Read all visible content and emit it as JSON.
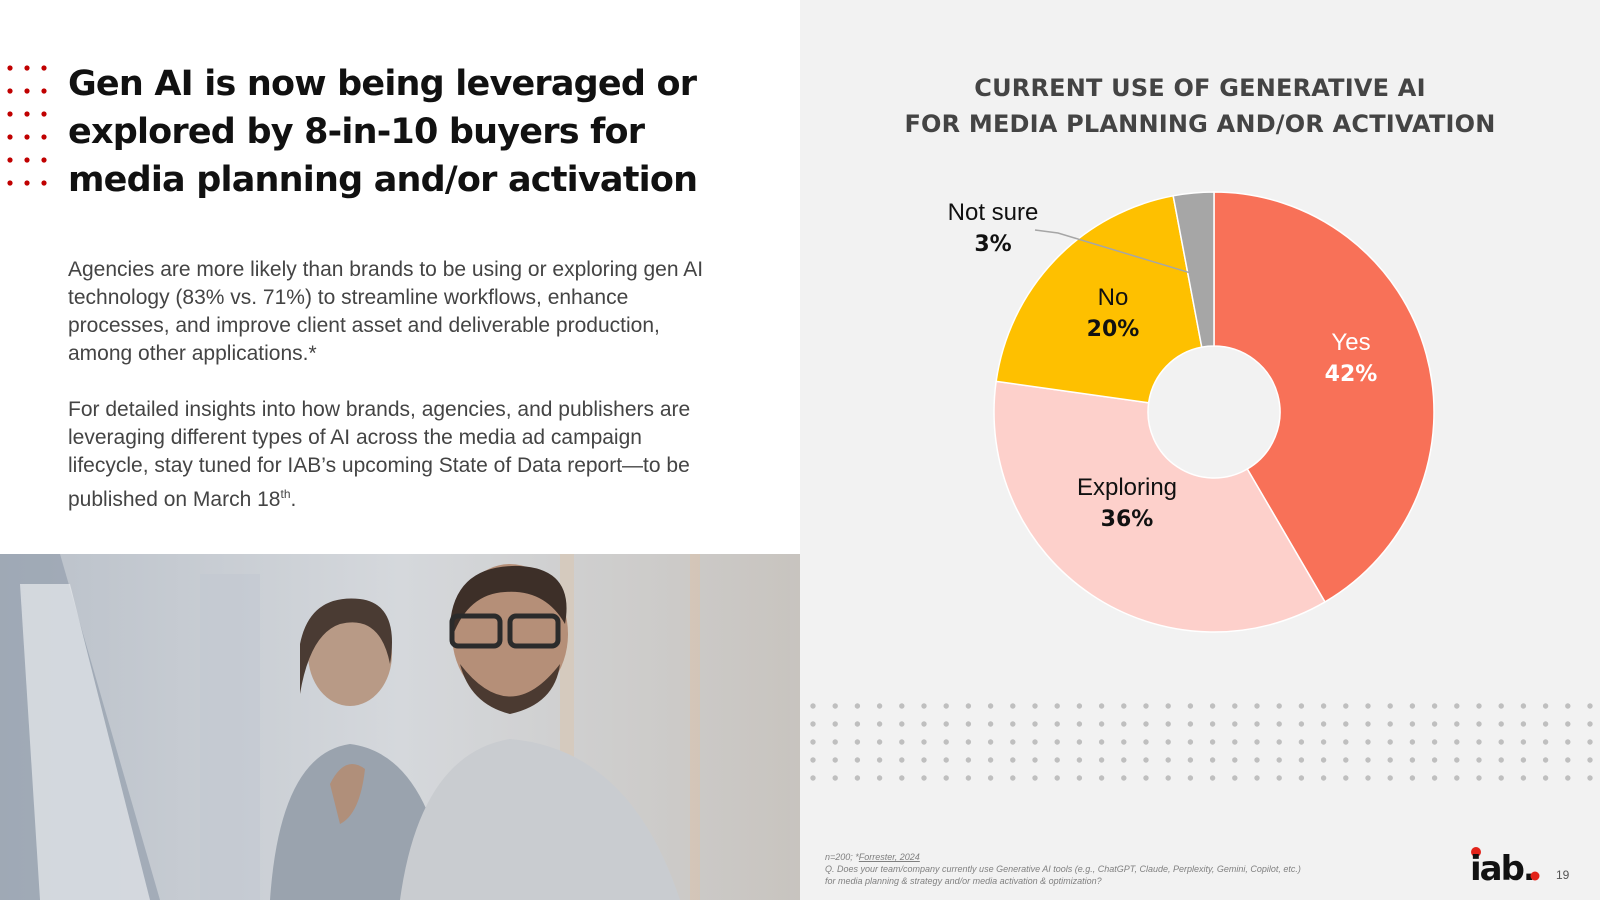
{
  "headline": "Gen AI is now being leveraged or explored by 8-in-10 buyers for media planning and/or activation",
  "body": {
    "p1": "Agencies are more likely than brands to be using or exploring gen AI technology (83% vs. 71%) to streamline workflows, enhance processes, and improve client asset and deliverable production, among other applications.*",
    "p2_text": "For detailed insights into how brands, agencies, and publishers are leveraging different types of AI across the media ad campaign lifecycle, stay tuned for IAB’s upcoming State of Data report—to be published on March 18",
    "p2_sup": "th",
    "p2_end": "."
  },
  "chart_data": {
    "type": "pie",
    "title_lines": [
      "CURRENT USE OF GENERATIVE AI",
      "FOR MEDIA PLANNING AND/OR ACTIVATION"
    ],
    "slices": [
      {
        "label": "Yes",
        "value": 42,
        "display": "42%",
        "color": "#f87158"
      },
      {
        "label": "Exploring",
        "value": 36,
        "display": "36%",
        "color": "#fdd0cb"
      },
      {
        "label": "No",
        "value": 20,
        "display": "20%",
        "color": "#fec000"
      },
      {
        "label": "Not sure",
        "value": 3,
        "display": "3%",
        "color": "#a6a6a6"
      }
    ],
    "donut_hole": true
  },
  "footnote": {
    "line1_prefix": "n=200; *",
    "line1_link": "Forrester, 2024",
    "line2": "Q. Does your team/company currently use Generative AI tools (e.g., ChatGPT, Claude, Perplexity, Gemini, Copilot, etc.)",
    "line3": "for media planning & strategy and/or media activation & optimization?"
  },
  "logo_text": "iab.",
  "page_number": "19",
  "colors": {
    "accent_red": "#e2231a",
    "dot_red": "#c00000",
    "dot_gray": "#bfbfbf"
  }
}
